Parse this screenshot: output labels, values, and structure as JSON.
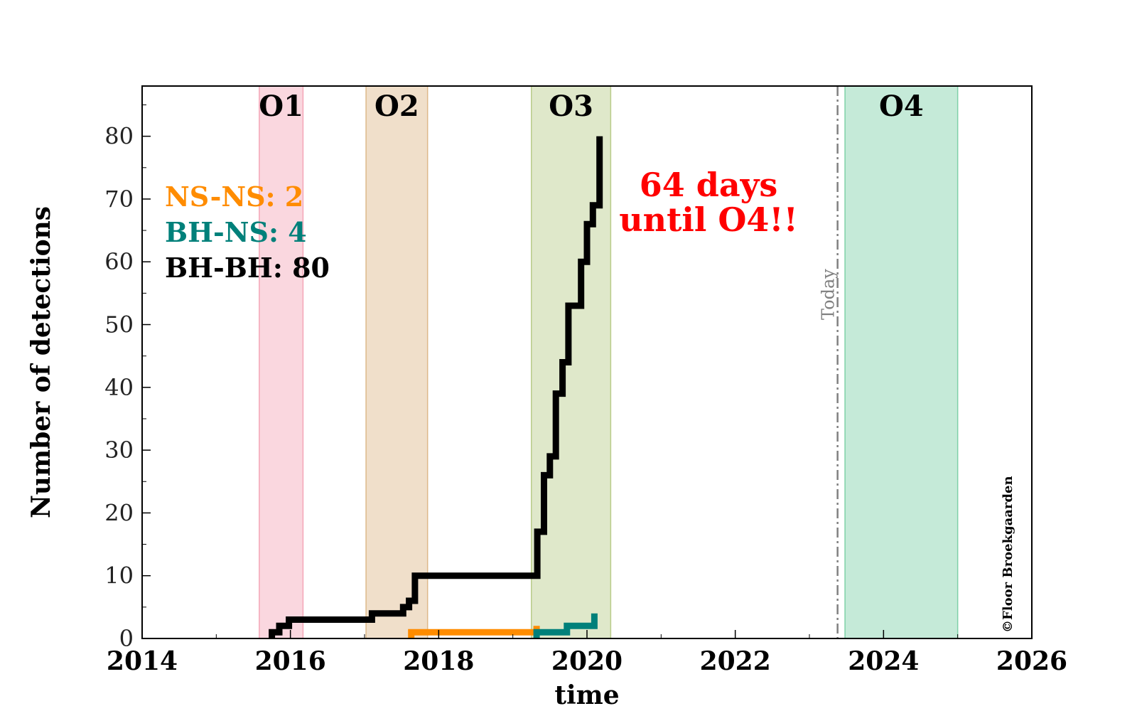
{
  "chart_data": {
    "type": "line",
    "xlabel": "time",
    "ylabel": "Number of detections",
    "xlim": [
      2014,
      2026
    ],
    "ylim": [
      0,
      88
    ],
    "x_ticks": [
      "2014",
      "2016",
      "2018",
      "2020",
      "2022",
      "2024",
      "2026"
    ],
    "y_ticks": [
      "0",
      "10",
      "20",
      "30",
      "40",
      "50",
      "60",
      "70",
      "80"
    ],
    "observing_runs": [
      {
        "name": "O1",
        "start": 2015.58,
        "end": 2016.17,
        "color": "#f4a6b8"
      },
      {
        "name": "O2",
        "start": 2017.02,
        "end": 2017.85,
        "color": "#ddb98a"
      },
      {
        "name": "O3",
        "start": 2019.25,
        "end": 2020.32,
        "color": "#b9cc8a"
      },
      {
        "name": "O4",
        "start": 2023.48,
        "end": 2025.0,
        "color": "#7fd1a8"
      }
    ],
    "today_marker": {
      "x": 2023.38,
      "label": "Today"
    },
    "series": [
      {
        "name": "BH-BH",
        "color": "#000000",
        "points": [
          [
            2015.75,
            0
          ],
          [
            2015.75,
            1
          ],
          [
            2015.85,
            1
          ],
          [
            2015.85,
            2
          ],
          [
            2015.98,
            2
          ],
          [
            2015.98,
            3
          ],
          [
            2017.1,
            3
          ],
          [
            2017.1,
            4
          ],
          [
            2017.52,
            4
          ],
          [
            2017.52,
            5
          ],
          [
            2017.6,
            5
          ],
          [
            2017.6,
            6
          ],
          [
            2017.68,
            6
          ],
          [
            2017.68,
            10
          ],
          [
            2019.33,
            10
          ],
          [
            2019.33,
            17
          ],
          [
            2019.42,
            17
          ],
          [
            2019.42,
            26
          ],
          [
            2019.5,
            26
          ],
          [
            2019.5,
            29
          ],
          [
            2019.58,
            29
          ],
          [
            2019.58,
            39
          ],
          [
            2019.67,
            39
          ],
          [
            2019.67,
            44
          ],
          [
            2019.75,
            44
          ],
          [
            2019.75,
            53
          ],
          [
            2019.92,
            53
          ],
          [
            2019.92,
            60
          ],
          [
            2020.0,
            60
          ],
          [
            2020.0,
            66
          ],
          [
            2020.08,
            66
          ],
          [
            2020.08,
            69
          ],
          [
            2020.17,
            69
          ],
          [
            2020.17,
            80
          ]
        ]
      },
      {
        "name": "NS-NS",
        "color": "#ff8c00",
        "points": [
          [
            2017.63,
            0
          ],
          [
            2017.63,
            1
          ],
          [
            2019.32,
            1
          ],
          [
            2019.32,
            2
          ]
        ]
      },
      {
        "name": "BH-NS",
        "color": "#00807a",
        "points": [
          [
            2019.32,
            0
          ],
          [
            2019.32,
            1
          ],
          [
            2019.73,
            1
          ],
          [
            2019.73,
            2
          ],
          [
            2020.1,
            2
          ],
          [
            2020.1,
            4
          ]
        ]
      }
    ],
    "legend": [
      {
        "label": "NS-NS: 2",
        "color": "#ff8c00"
      },
      {
        "label": "BH-NS: 4",
        "color": "#00807a"
      },
      {
        "label": "BH-BH: 80",
        "color": "#000000"
      }
    ],
    "annotation": {
      "line1": "64 days",
      "line2": "until O4!!",
      "color": "#ff0000"
    },
    "credit": "©Floor Broekgaarden"
  }
}
